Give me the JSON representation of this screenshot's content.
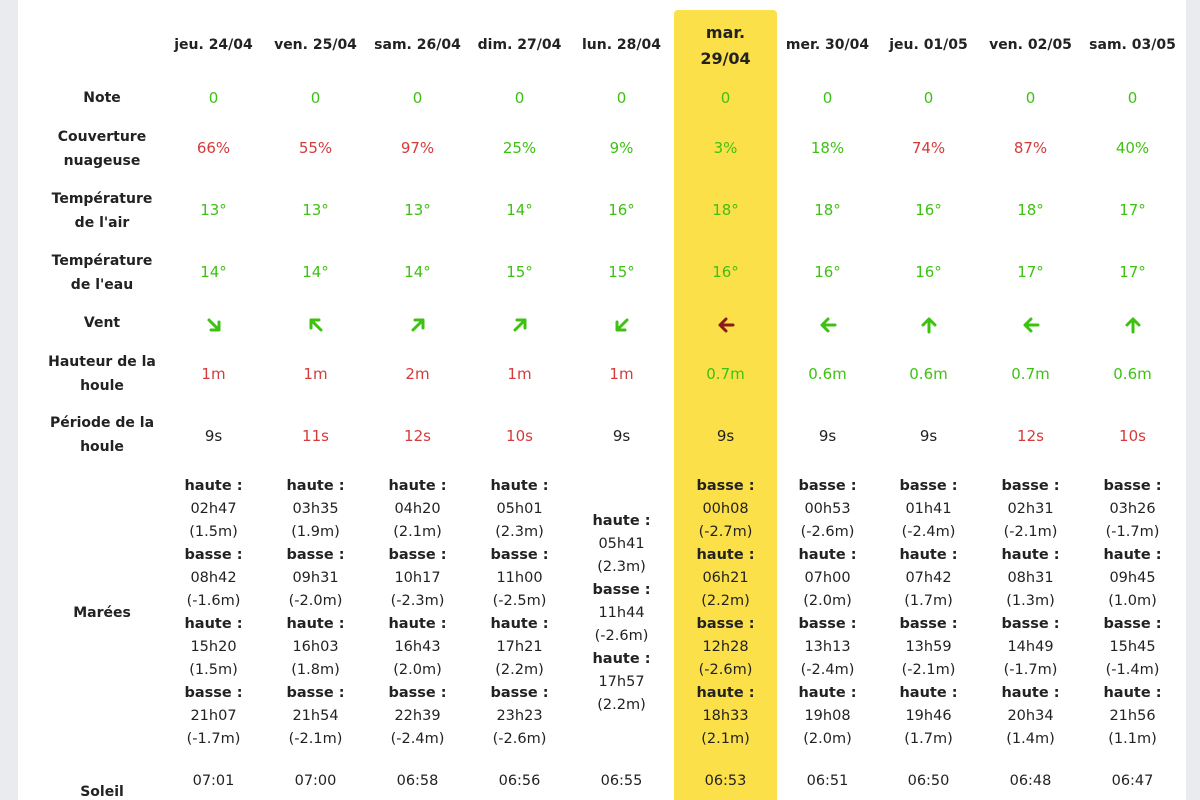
{
  "labels": {
    "note": "Note",
    "clouds_1": "Couverture",
    "clouds_2": "nuageuse",
    "air_1": "Température",
    "air_2": "de l'air",
    "water_1": "Température",
    "water_2": "de l'eau",
    "wind": "Vent",
    "swell_h_1": "Hauteur de la",
    "swell_h_2": "houle",
    "swell_p_1": "Période de la",
    "swell_p_2": "houle",
    "tides": "Marées",
    "sun": "Soleil"
  },
  "colors": {
    "highlight": "#fbe04a",
    "good": "#3ec212",
    "bad": "#d53b3b",
    "neutral": "#222222",
    "wind_highlight": "#8b1a1a"
  },
  "days": [
    {
      "date": "jeu. 24/04",
      "note": "0",
      "clouds": "66%",
      "clouds_c": "red",
      "air": "13°",
      "water": "14°",
      "wind_dir": "down-right",
      "wind_c": "green",
      "swell_h": "1m",
      "swell_h_c": "red",
      "swell_p": "9s",
      "swell_p_c": "dark",
      "tides": [
        {
          "type": "haute :",
          "time": "02h47",
          "h": "(1.5m)"
        },
        {
          "type": "basse :",
          "time": "08h42",
          "h": "(-1.6m)"
        },
        {
          "type": "haute :",
          "time": "15h20",
          "h": "(1.5m)"
        },
        {
          "type": "basse :",
          "time": "21h07",
          "h": "(-1.7m)"
        }
      ],
      "sunrise": "07:01"
    },
    {
      "date": "ven. 25/04",
      "note": "0",
      "clouds": "55%",
      "clouds_c": "red",
      "air": "13°",
      "water": "14°",
      "wind_dir": "up-left",
      "wind_c": "green",
      "swell_h": "1m",
      "swell_h_c": "red",
      "swell_p": "11s",
      "swell_p_c": "red",
      "tides": [
        {
          "type": "haute :",
          "time": "03h35",
          "h": "(1.9m)"
        },
        {
          "type": "basse :",
          "time": "09h31",
          "h": "(-2.0m)"
        },
        {
          "type": "haute :",
          "time": "16h03",
          "h": "(1.8m)"
        },
        {
          "type": "basse :",
          "time": "21h54",
          "h": "(-2.1m)"
        }
      ],
      "sunrise": "07:00"
    },
    {
      "date": "sam. 26/04",
      "note": "0",
      "clouds": "97%",
      "clouds_c": "red",
      "air": "13°",
      "water": "14°",
      "wind_dir": "up-right",
      "wind_c": "green",
      "swell_h": "2m",
      "swell_h_c": "red",
      "swell_p": "12s",
      "swell_p_c": "red",
      "tides": [
        {
          "type": "haute :",
          "time": "04h20",
          "h": "(2.1m)"
        },
        {
          "type": "basse :",
          "time": "10h17",
          "h": "(-2.3m)"
        },
        {
          "type": "haute :",
          "time": "16h43",
          "h": "(2.0m)"
        },
        {
          "type": "basse :",
          "time": "22h39",
          "h": "(-2.4m)"
        }
      ],
      "sunrise": "06:58"
    },
    {
      "date": "dim. 27/04",
      "note": "0",
      "clouds": "25%",
      "clouds_c": "green",
      "air": "14°",
      "water": "15°",
      "wind_dir": "up-right",
      "wind_c": "green",
      "swell_h": "1m",
      "swell_h_c": "red",
      "swell_p": "10s",
      "swell_p_c": "red",
      "tides": [
        {
          "type": "haute :",
          "time": "05h01",
          "h": "(2.3m)"
        },
        {
          "type": "basse :",
          "time": "11h00",
          "h": "(-2.5m)"
        },
        {
          "type": "haute :",
          "time": "17h21",
          "h": "(2.2m)"
        },
        {
          "type": "basse :",
          "time": "23h23",
          "h": "(-2.6m)"
        }
      ],
      "sunrise": "06:56"
    },
    {
      "date": "lun. 28/04",
      "note": "0",
      "clouds": "9%",
      "clouds_c": "green",
      "air": "16°",
      "water": "15°",
      "wind_dir": "down-left",
      "wind_c": "green",
      "swell_h": "1m",
      "swell_h_c": "red",
      "swell_p": "9s",
      "swell_p_c": "dark",
      "tides": [
        {
          "type": "haute :",
          "time": "05h41",
          "h": "(2.3m)"
        },
        {
          "type": "basse :",
          "time": "11h44",
          "h": "(-2.6m)"
        },
        {
          "type": "haute :",
          "time": "17h57",
          "h": "(2.2m)"
        }
      ],
      "sunrise": "06:55"
    },
    {
      "date_1": "mar.",
      "date_2": "29/04",
      "note": "0",
      "clouds": "3%",
      "clouds_c": "green",
      "air": "18°",
      "water": "16°",
      "wind_dir": "left",
      "wind_c": "darkred",
      "swell_h": "0.7m",
      "swell_h_c": "green",
      "swell_p": "9s",
      "swell_p_c": "dark",
      "tides": [
        {
          "type": "basse :",
          "time": "00h08",
          "h": "(-2.7m)"
        },
        {
          "type": "haute :",
          "time": "06h21",
          "h": "(2.2m)"
        },
        {
          "type": "basse :",
          "time": "12h28",
          "h": "(-2.6m)"
        },
        {
          "type": "haute :",
          "time": "18h33",
          "h": "(2.1m)"
        }
      ],
      "sunrise": "06:53"
    },
    {
      "date": "mer. 30/04",
      "note": "0",
      "clouds": "18%",
      "clouds_c": "green",
      "air": "18°",
      "water": "16°",
      "wind_dir": "left",
      "wind_c": "green",
      "swell_h": "0.6m",
      "swell_h_c": "green",
      "swell_p": "9s",
      "swell_p_c": "dark",
      "tides": [
        {
          "type": "basse :",
          "time": "00h53",
          "h": "(-2.6m)"
        },
        {
          "type": "haute :",
          "time": "07h00",
          "h": "(2.0m)"
        },
        {
          "type": "basse :",
          "time": "13h13",
          "h": "(-2.4m)"
        },
        {
          "type": "haute :",
          "time": "19h08",
          "h": "(2.0m)"
        }
      ],
      "sunrise": "06:51"
    },
    {
      "date": "jeu. 01/05",
      "note": "0",
      "clouds": "74%",
      "clouds_c": "red",
      "air": "16°",
      "water": "16°",
      "wind_dir": "up",
      "wind_c": "green",
      "swell_h": "0.6m",
      "swell_h_c": "green",
      "swell_p": "9s",
      "swell_p_c": "dark",
      "tides": [
        {
          "type": "basse :",
          "time": "01h41",
          "h": "(-2.4m)"
        },
        {
          "type": "haute :",
          "time": "07h42",
          "h": "(1.7m)"
        },
        {
          "type": "basse :",
          "time": "13h59",
          "h": "(-2.1m)"
        },
        {
          "type": "haute :",
          "time": "19h46",
          "h": "(1.7m)"
        }
      ],
      "sunrise": "06:50"
    },
    {
      "date": "ven. 02/05",
      "note": "0",
      "clouds": "87%",
      "clouds_c": "red",
      "air": "18°",
      "water": "17°",
      "wind_dir": "left",
      "wind_c": "green",
      "swell_h": "0.7m",
      "swell_h_c": "green",
      "swell_p": "12s",
      "swell_p_c": "red",
      "tides": [
        {
          "type": "basse :",
          "time": "02h31",
          "h": "(-2.1m)"
        },
        {
          "type": "haute :",
          "time": "08h31",
          "h": "(1.3m)"
        },
        {
          "type": "basse :",
          "time": "14h49",
          "h": "(-1.7m)"
        },
        {
          "type": "haute :",
          "time": "20h34",
          "h": "(1.4m)"
        }
      ],
      "sunrise": "06:48"
    },
    {
      "date": "sam. 03/05",
      "note": "0",
      "clouds": "40%",
      "clouds_c": "green",
      "air": "17°",
      "water": "17°",
      "wind_dir": "up",
      "wind_c": "green",
      "swell_h": "0.6m",
      "swell_h_c": "green",
      "swell_p": "10s",
      "swell_p_c": "red",
      "tides": [
        {
          "type": "basse :",
          "time": "03h26",
          "h": "(-1.7m)"
        },
        {
          "type": "haute :",
          "time": "09h45",
          "h": "(1.0m)"
        },
        {
          "type": "basse :",
          "time": "15h45",
          "h": "(-1.4m)"
        },
        {
          "type": "haute :",
          "time": "21h56",
          "h": "(1.1m)"
        }
      ],
      "sunrise": "06:47"
    }
  ]
}
